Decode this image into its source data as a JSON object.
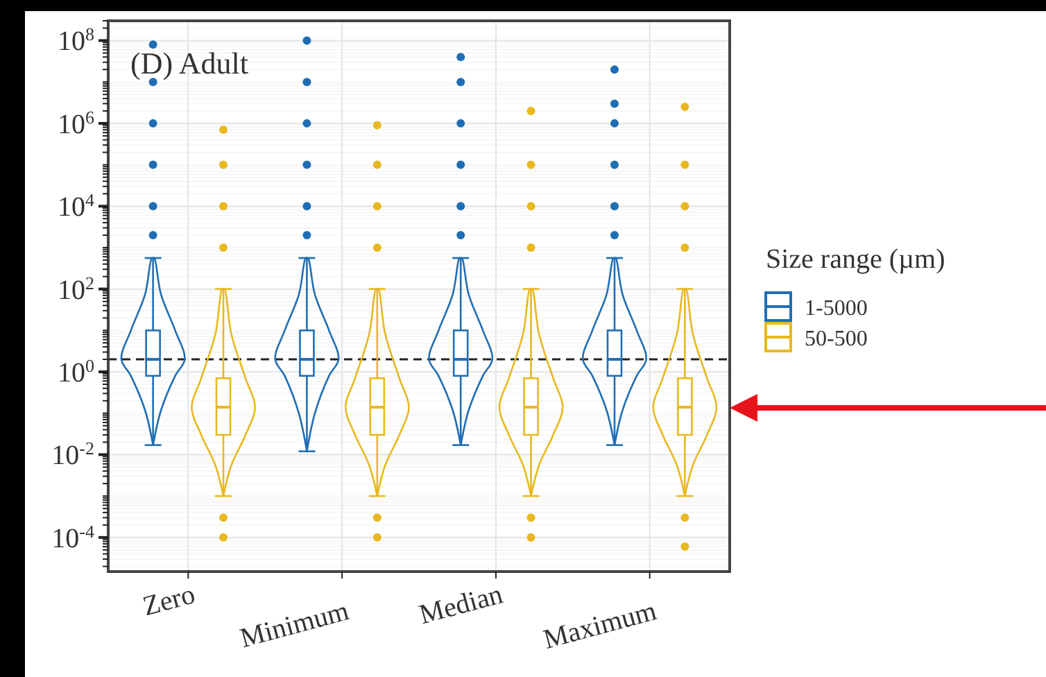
{
  "chart_data": {
    "type": "box",
    "title": "(D) Adult",
    "legend_title": "Size range (µm)",
    "categories": [
      "Zero",
      "Minimum",
      "Median",
      "Maximum"
    ],
    "series": [
      {
        "name": "1-5000",
        "color": "#1f6eb4",
        "boxes": [
          {
            "low": 0.017,
            "q1": 0.8,
            "median": 2,
            "q3": 10,
            "high": 560,
            "outliers": [
              2000,
              10000,
              100000,
              1000000,
              10000000,
              80000000
            ]
          },
          {
            "low": 0.012,
            "q1": 0.8,
            "median": 2,
            "q3": 10,
            "high": 560,
            "outliers": [
              2000,
              10000,
              100000,
              1000000,
              10000000,
              100000000
            ]
          },
          {
            "low": 0.017,
            "q1": 0.8,
            "median": 2,
            "q3": 10,
            "high": 560,
            "outliers": [
              2000,
              10000,
              100000,
              1000000,
              10000000,
              40000000
            ]
          },
          {
            "low": 0.017,
            "q1": 0.8,
            "median": 2,
            "q3": 10,
            "high": 560,
            "outliers": [
              2000,
              10000,
              100000,
              1000000,
              3000000,
              20000000
            ]
          }
        ]
      },
      {
        "name": "50-500",
        "color": "#e8b820",
        "boxes": [
          {
            "low": 0.001,
            "q1": 0.03,
            "median": 0.14,
            "q3": 0.7,
            "high": 100,
            "outliers": [
              0.0003,
              0.0001,
              1000,
              10000,
              100000,
              700000
            ]
          },
          {
            "low": 0.001,
            "q1": 0.03,
            "median": 0.14,
            "q3": 0.7,
            "high": 100,
            "outliers": [
              0.0003,
              0.0001,
              1000,
              10000,
              100000,
              900000
            ]
          },
          {
            "low": 0.001,
            "q1": 0.03,
            "median": 0.14,
            "q3": 0.7,
            "high": 100,
            "outliers": [
              0.0003,
              0.0001,
              1000,
              10000,
              100000,
              2000000
            ]
          },
          {
            "low": 0.001,
            "q1": 0.03,
            "median": 0.14,
            "q3": 0.7,
            "high": 100,
            "outliers": [
              0.0003,
              6e-05,
              1000,
              10000,
              100000,
              2500000
            ]
          }
        ]
      }
    ],
    "log": true,
    "ylim": [
      1.5e-05,
      300000000
    ],
    "yticks": [
      {
        "value": 0.0001,
        "label": "10$^{-4}$"
      },
      {
        "value": 0.01,
        "label": "10$^{-2}$"
      },
      {
        "value": 1,
        "label": "10$^{0}$"
      },
      {
        "value": 100,
        "label": "10$^{2}$"
      },
      {
        "value": 10000,
        "label": "10$^{4}$"
      },
      {
        "value": 1000000,
        "label": "10$^{6}$"
      },
      {
        "value": 100000000,
        "label": "10$^{8}$"
      }
    ],
    "ref_lines": [
      {
        "axis": "y",
        "value": 2,
        "line_style": "dashed",
        "color": "#222222"
      }
    ],
    "grid": true,
    "legend": "right"
  }
}
